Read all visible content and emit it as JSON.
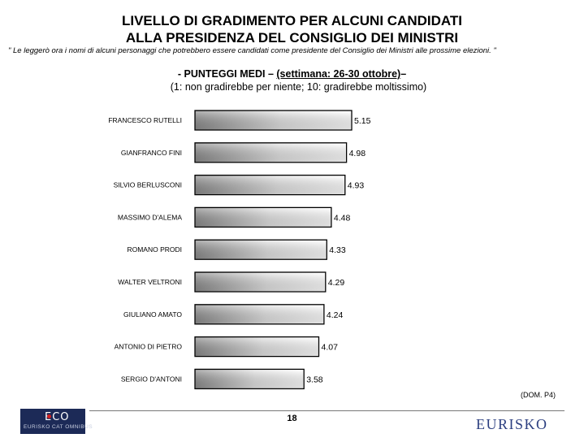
{
  "header": {
    "title_line1": "LIVELLO DI GRADIMENTO PER ALCUNI CANDIDATI",
    "title_line2": "ALLA PRESIDENZA DEL CONSIGLIO DEI MINISTRI",
    "question_note": "\" Le leggerò ora i nomi di alcuni personaggi che potrebbero essere candidati come presidente del Consiglio dei Ministri alle prossime elezioni. \"",
    "subtitle_prefix": "- PUNTEGGI MEDI – ",
    "subtitle_week": "(settimana: 26-30 ottobre)",
    "subtitle_suffix": "–",
    "scale_note": "(1: non gradirebbe per niente; 10: gradirebbe moltissimo)"
  },
  "footer": {
    "source": "(DOM. P4)",
    "page_number": "18",
    "logo_left_text": "ECO",
    "logo_left_sub": "EURISKO CAT OMNIBUS",
    "logo_right_text": "EURISKO"
  },
  "chart_data": {
    "type": "bar",
    "orientation": "horizontal",
    "categories": [
      "FRANCESCO RUTELLI",
      "GIANFRANCO FINI",
      "SILVIO BERLUSCONI",
      "MASSIMO D'ALEMA",
      "ROMANO PRODI",
      "WALTER VELTRONI",
      "GIULIANO AMATO",
      "ANTONIO DI PIETRO",
      "SERGIO D'ANTONI"
    ],
    "values": [
      5.15,
      4.98,
      4.93,
      4.48,
      4.33,
      4.29,
      4.24,
      4.07,
      3.58
    ],
    "value_labels": [
      "5.15",
      "4.98",
      "4.93",
      "4.48",
      "4.33",
      "4.29",
      "4.24",
      "4.07",
      "3.58"
    ],
    "xlim": [
      0,
      5.15
    ],
    "grid": false,
    "legend": "none",
    "bar_style": "gradient-grey"
  }
}
